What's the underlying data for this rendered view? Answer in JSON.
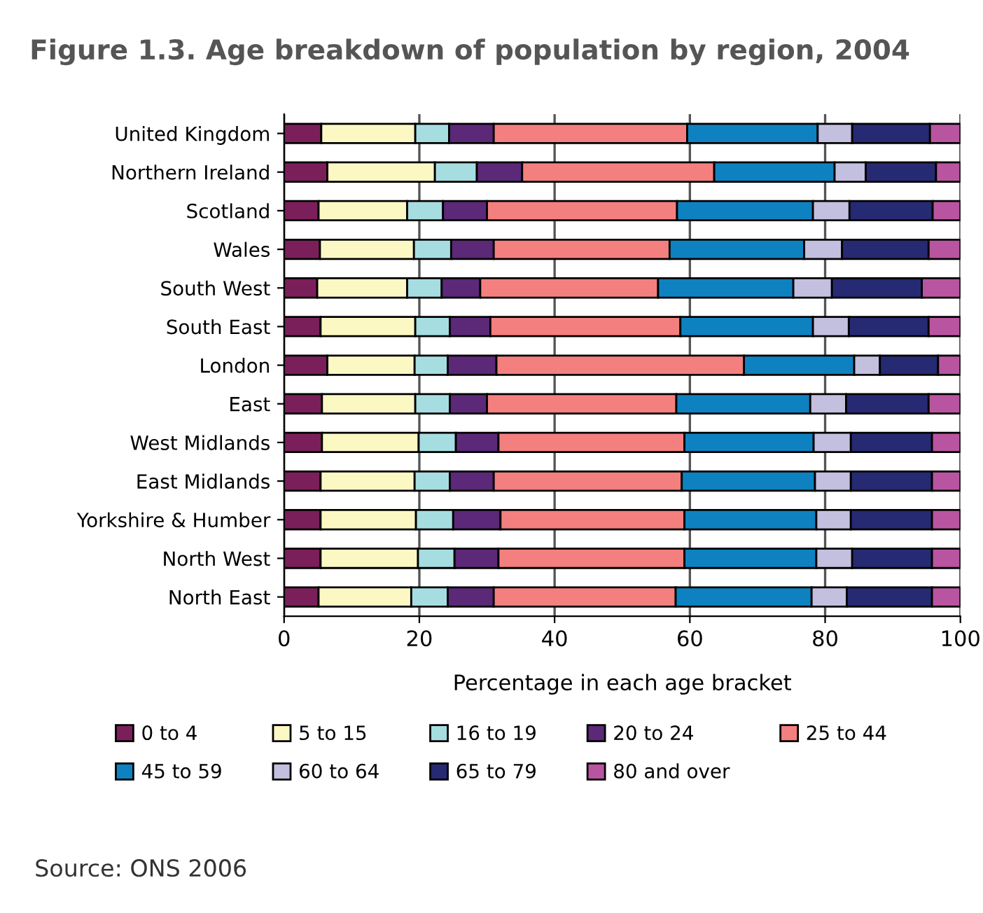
{
  "chart_data": {
    "type": "bar",
    "orientation": "horizontal",
    "stacked": true,
    "title": "Figure 1.3. Age breakdown of population by region, 2004",
    "xlabel": "Percentage in each age bracket",
    "categories": [
      "United Kingdom",
      "Northern Ireland",
      "Scotland",
      "Wales",
      "South West",
      "South East",
      "London",
      "East",
      "West Midlands",
      "East Midlands",
      "Yorkshire & Humber",
      "North West",
      "North East"
    ],
    "series": [
      {
        "name": "0 to 4",
        "color": "#7b1f5a",
        "values": [
          5.5,
          6.4,
          5.1,
          5.3,
          4.9,
          5.4,
          6.4,
          5.6,
          5.6,
          5.4,
          5.4,
          5.4,
          5.1
        ]
      },
      {
        "name": "5 to 15",
        "color": "#fbf8c4",
        "values": [
          13.9,
          15.9,
          13.1,
          13.9,
          13.3,
          14.0,
          12.9,
          13.8,
          14.3,
          13.9,
          14.1,
          14.4,
          13.7
        ]
      },
      {
        "name": "16 to 19",
        "color": "#a6dde0",
        "values": [
          5.0,
          6.2,
          5.3,
          5.5,
          5.1,
          5.1,
          4.9,
          5.1,
          5.5,
          5.2,
          5.5,
          5.4,
          5.4
        ]
      },
      {
        "name": "20 to 24",
        "color": "#5c2878",
        "values": [
          6.6,
          6.7,
          6.5,
          6.3,
          5.7,
          6.0,
          7.2,
          5.5,
          6.3,
          6.5,
          7.0,
          6.5,
          6.8
        ]
      },
      {
        "name": "25 to 44",
        "color": "#f47f7f",
        "values": [
          28.6,
          28.4,
          28.1,
          26.0,
          26.3,
          28.1,
          36.6,
          28.0,
          27.5,
          27.8,
          27.2,
          27.5,
          26.9
        ]
      },
      {
        "name": "45 to 59",
        "color": "#0e82c0",
        "values": [
          19.3,
          17.8,
          20.1,
          19.9,
          20.0,
          19.6,
          16.3,
          19.8,
          19.1,
          19.7,
          19.5,
          19.5,
          20.1
        ]
      },
      {
        "name": "60 to 64",
        "color": "#c3bfdf",
        "values": [
          5.1,
          4.6,
          5.4,
          5.6,
          5.7,
          5.3,
          3.8,
          5.3,
          5.5,
          5.3,
          5.1,
          5.3,
          5.2
        ]
      },
      {
        "name": "65 to 79",
        "color": "#262a73",
        "values": [
          11.5,
          10.4,
          12.3,
          12.8,
          13.3,
          11.8,
          8.6,
          12.2,
          12.0,
          12.0,
          12.0,
          11.8,
          12.6
        ]
      },
      {
        "name": "80 and over",
        "color": "#b955a0",
        "values": [
          4.5,
          3.6,
          4.1,
          4.7,
          5.7,
          4.7,
          3.3,
          4.7,
          4.2,
          4.2,
          4.2,
          4.2,
          4.2
        ]
      }
    ],
    "xlim": [
      0,
      100
    ],
    "xticks": [
      0,
      20,
      40,
      60,
      80,
      100
    ],
    "grid": "x",
    "legend": "bottom",
    "annotations": [
      "Source: ONS 2006"
    ]
  }
}
